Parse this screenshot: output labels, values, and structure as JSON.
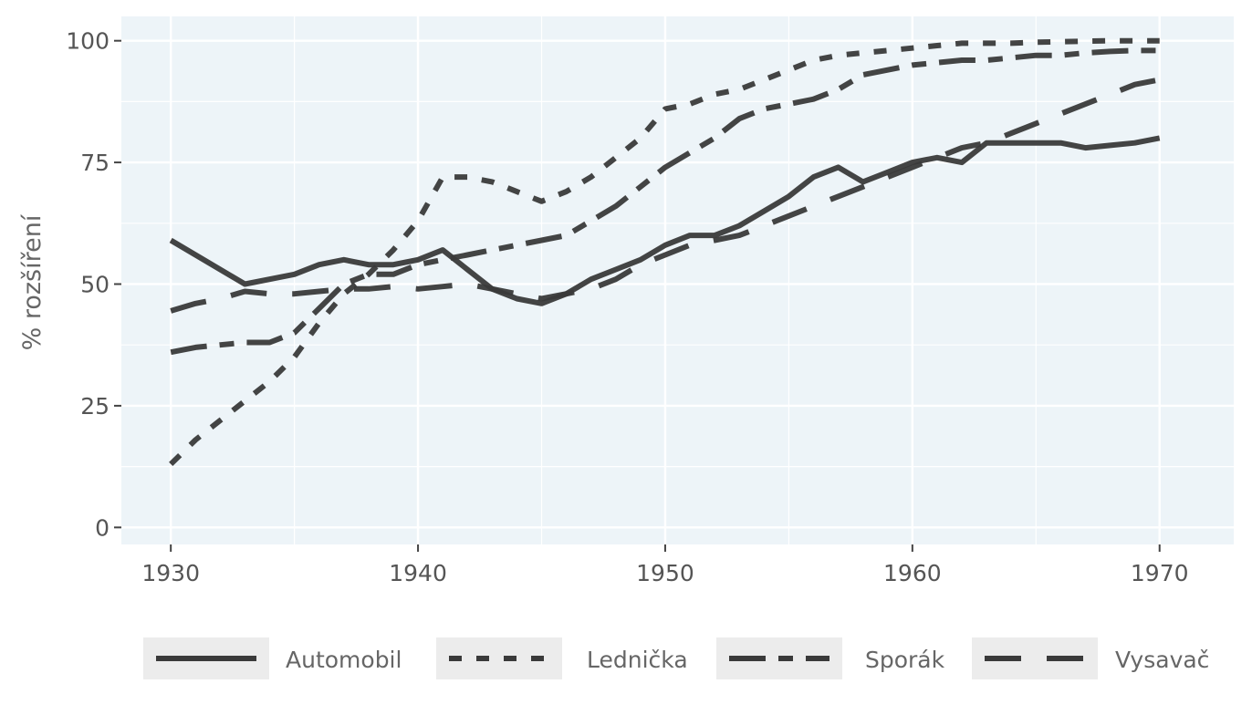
{
  "chart_data": {
    "type": "line",
    "title": "",
    "xlabel": "",
    "ylabel": "% rozšíření",
    "xlim": [
      1928,
      1973
    ],
    "ylim": [
      -3.5,
      105
    ],
    "xticks": [
      1930,
      1940,
      1950,
      1960,
      1970
    ],
    "yticks": [
      0,
      25,
      50,
      75,
      100
    ],
    "grid": true,
    "legend_position": "bottom",
    "colors": {
      "panel": "#edf4f8",
      "grid": "#ffffff",
      "line": "#3a3a3a",
      "legend_key_bg": "#ececec",
      "text": "#555555"
    },
    "series": [
      {
        "name": "Automobil",
        "dash": "solid",
        "x": [
          1930,
          1933,
          1935,
          1936,
          1937,
          1938,
          1939,
          1940,
          1941,
          1942,
          1943,
          1944,
          1945,
          1946,
          1947,
          1948,
          1949,
          1950,
          1951,
          1952,
          1953,
          1954,
          1955,
          1956,
          1957,
          1958,
          1959,
          1960,
          1961,
          1962,
          1963,
          1964,
          1965,
          1966,
          1967,
          1968,
          1969,
          1970
        ],
        "y": [
          59,
          50,
          52,
          54,
          55,
          54,
          54,
          55,
          57,
          53,
          49,
          47,
          46,
          48,
          51,
          53,
          55,
          58,
          60,
          60,
          62,
          65,
          68,
          72,
          74,
          71,
          73,
          75,
          76,
          75,
          79,
          79,
          79,
          79,
          78,
          78.5,
          79,
          80
        ]
      },
      {
        "name": "Lednička",
        "dash": "dotted",
        "x": [
          1930,
          1931,
          1932,
          1933,
          1934,
          1935,
          1936,
          1937,
          1938,
          1939,
          1940,
          1941,
          1942,
          1943,
          1944,
          1945,
          1946,
          1947,
          1948,
          1949,
          1950,
          1951,
          1952,
          1953,
          1954,
          1955,
          1956,
          1957,
          1958,
          1959,
          1960,
          1961,
          1962,
          1963,
          1964,
          1965,
          1966,
          1967,
          1968,
          1969,
          1970
        ],
        "y": [
          13,
          18,
          22,
          26,
          30,
          35,
          42,
          48,
          52,
          57,
          63,
          72,
          72,
          71,
          69,
          67,
          69,
          72,
          76,
          80,
          86,
          87,
          89,
          90,
          92,
          94,
          96,
          97,
          97.5,
          98,
          98.5,
          99,
          99.5,
          99.5,
          99.5,
          99.7,
          99.8,
          99.9,
          100,
          100,
          100
        ]
      },
      {
        "name": "Sporák",
        "dash": "long-short",
        "x": [
          1930,
          1931,
          1932,
          1933,
          1934,
          1935,
          1936,
          1937,
          1938,
          1939,
          1940,
          1941,
          1942,
          1943,
          1944,
          1945,
          1946,
          1947,
          1948,
          1949,
          1950,
          1951,
          1952,
          1953,
          1954,
          1955,
          1956,
          1957,
          1958,
          1959,
          1960,
          1961,
          1962,
          1963,
          1964,
          1965,
          1966,
          1967,
          1968,
          1969,
          1970
        ],
        "y": [
          36,
          37,
          37.5,
          38,
          38,
          40,
          45,
          50,
          52,
          52,
          54,
          55,
          56,
          57,
          58,
          59,
          60,
          63,
          66,
          70,
          74,
          77,
          80,
          84,
          86,
          87,
          88,
          90,
          93,
          94,
          95,
          95.5,
          96,
          96,
          96.5,
          97,
          97,
          97.5,
          97.8,
          98,
          98
        ]
      },
      {
        "name": "Vysavač",
        "dash": "long",
        "x": [
          1930,
          1931,
          1932,
          1933,
          1934,
          1935,
          1936,
          1937,
          1938,
          1939,
          1940,
          1941,
          1942,
          1943,
          1944,
          1945,
          1946,
          1947,
          1948,
          1949,
          1950,
          1951,
          1952,
          1953,
          1954,
          1955,
          1956,
          1957,
          1958,
          1959,
          1960,
          1961,
          1962,
          1963,
          1964,
          1965,
          1966,
          1967,
          1968,
          1969,
          1970
        ],
        "y": [
          44.5,
          46,
          47,
          48.5,
          48,
          48,
          48.5,
          49,
          49,
          49.5,
          49,
          49.5,
          50,
          49,
          48,
          47,
          48,
          49,
          51,
          54,
          56,
          58,
          59,
          60,
          62,
          64,
          66,
          68,
          70,
          72,
          74,
          76,
          78,
          79,
          81,
          83,
          85,
          87,
          89,
          91,
          92
        ]
      }
    ]
  }
}
